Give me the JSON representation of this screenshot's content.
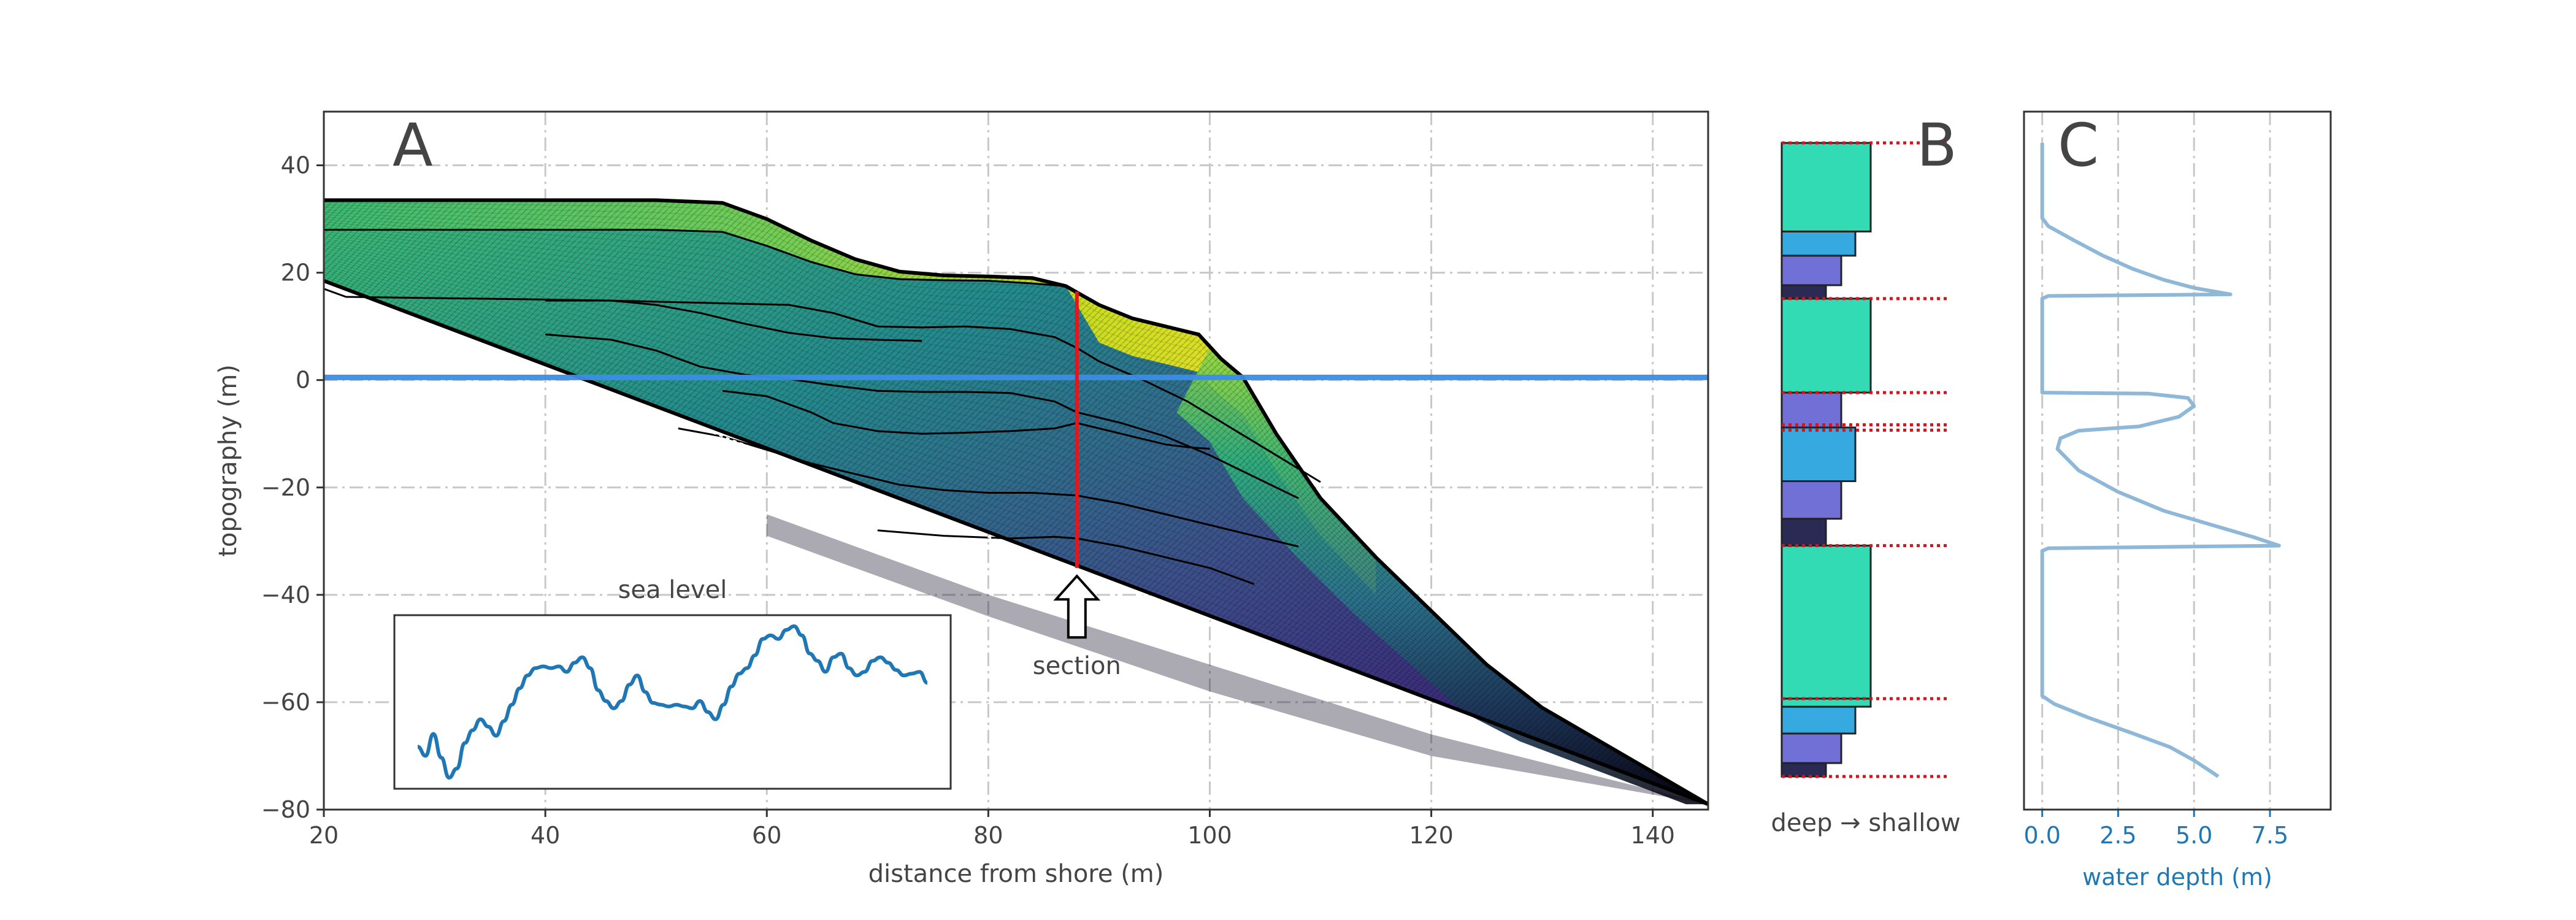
{
  "chart_data": [
    {
      "panel": "A",
      "type": "area",
      "panel_label": "A",
      "xlabel": "distance from shore (m)",
      "ylabel": "topography (m)",
      "xlim": [
        20,
        145
      ],
      "ylim": [
        -80,
        50
      ],
      "xticks": [
        20,
        40,
        60,
        80,
        100,
        120,
        140
      ],
      "yticks": [
        40,
        20,
        0,
        -20,
        -40,
        -60,
        -80
      ],
      "grid": true,
      "sea_level": 0.5,
      "basement": {
        "x": [
          20,
          145
        ],
        "y": [
          18.5,
          -79
        ]
      },
      "final_surface": {
        "x": [
          20,
          50,
          56,
          60,
          64,
          68,
          72,
          76,
          80,
          84,
          87,
          90,
          93,
          96,
          99,
          101,
          103,
          106,
          110,
          115,
          120,
          125,
          130,
          135,
          140,
          145
        ],
        "y": [
          33.5,
          33.5,
          33,
          30,
          26,
          22.5,
          20.2,
          19.5,
          19.3,
          19,
          17.5,
          14,
          11.5,
          10,
          8.5,
          4,
          0.5,
          -10,
          -22,
          -33,
          -43,
          -53,
          -61,
          -67,
          -73,
          -79
        ]
      },
      "internal_surfaces": [
        {
          "x": [
            20,
            50,
            56,
            60,
            64,
            68,
            72,
            76,
            80,
            84,
            87
          ],
          "y": [
            28,
            28,
            27.6,
            25,
            22,
            19.7,
            18.8,
            18.6,
            18.5,
            18,
            17.5
          ]
        },
        {
          "x": [
            20,
            22,
            40,
            46,
            50,
            54,
            58,
            62,
            66,
            70,
            74
          ],
          "y": [
            17,
            15.5,
            15,
            14.8,
            14,
            12.5,
            10.5,
            8.8,
            7.8,
            7.5,
            7.3
          ]
        },
        {
          "x": [
            40,
            46,
            50,
            54,
            58,
            62,
            66,
            70,
            74,
            78,
            82,
            86,
            88,
            90,
            94,
            98,
            102,
            106,
            110
          ],
          "y": [
            14.8,
            14.8,
            14.6,
            14.4,
            14.2,
            14,
            12.5,
            10,
            9.8,
            10,
            9.5,
            8,
            6,
            3.5,
            0,
            -4,
            -9,
            -14,
            -19
          ]
        },
        {
          "x": [
            40,
            46,
            50,
            54,
            58,
            62,
            66,
            70,
            74,
            78,
            82,
            86,
            88,
            92,
            96,
            100,
            104,
            108
          ],
          "y": [
            8.5,
            7.5,
            5.5,
            2.5,
            1,
            0.2,
            -1,
            -2,
            -2.2,
            -2.2,
            -2.4,
            -4,
            -6,
            -8,
            -10.5,
            -14,
            -18,
            -22
          ]
        },
        {
          "x": [
            56,
            60,
            64,
            66,
            70,
            74,
            78,
            82,
            86,
            88,
            92,
            96,
            98,
            100
          ],
          "y": [
            -2,
            -3,
            -6,
            -8,
            -9.5,
            -10,
            -9.8,
            -9.5,
            -9,
            -8,
            -10,
            -12,
            -12.5,
            -12.8
          ]
        },
        {
          "x": [
            52,
            56,
            60,
            64,
            68,
            72,
            76,
            80,
            84,
            88,
            92,
            96,
            100,
            104,
            108
          ],
          "y": [
            -9,
            -10.5,
            -13,
            -15.5,
            -17.5,
            -19.5,
            -20.5,
            -21,
            -21,
            -21.5,
            -23,
            -25,
            -27,
            -29,
            -31
          ]
        },
        {
          "x": [
            70,
            76,
            82,
            86,
            88,
            92,
            96,
            100,
            104
          ],
          "y": [
            -28,
            -29,
            -29.5,
            -29.2,
            -29.5,
            -31,
            -33,
            -35,
            -38
          ]
        }
      ],
      "section": {
        "x": 88,
        "y_top": 16.5,
        "y_bottom": -35,
        "label": "section"
      },
      "inset": {
        "title": "sea level",
        "series": [
          0,
          -0.25,
          0.35,
          -0.3,
          -0.85,
          -0.6,
          0.1,
          0.45,
          0.75,
          0.55,
          0.3,
          0.7,
          1.15,
          1.6,
          1.95,
          2.15,
          2.2,
          2.15,
          2.2,
          2.05,
          2.3,
          2.45,
          2.15,
          1.55,
          1.25,
          1.05,
          1.25,
          1.7,
          1.95,
          1.5,
          1.2,
          1.15,
          1.1,
          1.15,
          1.1,
          1.05,
          1.25,
          0.95,
          0.75,
          1.15,
          1.65,
          2.0,
          2.15,
          2.5,
          2.95,
          3.05,
          2.95,
          3.2,
          3.3,
          3.05,
          2.55,
          2.35,
          2.05,
          2.45,
          2.55,
          2.15,
          1.95,
          2.05,
          2.35,
          2.45,
          2.3,
          2.1,
          1.95,
          2.0,
          2.05,
          1.75
        ]
      }
    },
    {
      "panel": "B",
      "type": "bar",
      "panel_label": "B",
      "xlabel": "deep → shallow",
      "depth_range_m": [
        -74,
        44
      ],
      "boundaries": [
        44,
        15,
        -2.5,
        -8.5,
        -9.5,
        -31,
        -59.5,
        -74
      ],
      "units": [
        {
          "top": 44,
          "bottom": 15
        },
        {
          "top": 15,
          "bottom": -2.5
        },
        {
          "top": -2.5,
          "bottom": -9
        },
        {
          "top": -9,
          "bottom": -31
        },
        {
          "top": -31,
          "bottom": -59.5
        },
        {
          "top": -59.5,
          "bottom": -74
        }
      ],
      "classes": [
        {
          "level": 1,
          "color": "#2a2a55"
        },
        {
          "level": 2,
          "color": "#7070d6"
        },
        {
          "level": 3,
          "color": "#35a9e0"
        },
        {
          "level": 4,
          "color": "#33dbb5"
        }
      ],
      "facies_sequences": [
        [
          [
            -74,
            -71.5,
            1
          ],
          [
            -71.5,
            -66,
            2
          ],
          [
            -66,
            -61,
            3
          ],
          [
            -61,
            -59.5,
            4
          ]
        ],
        [
          [
            -59.5,
            -31,
            4
          ]
        ],
        [
          [
            -31,
            -26,
            1
          ],
          [
            -26,
            -19,
            2
          ],
          [
            -19,
            -9,
            3
          ]
        ],
        [
          [
            -9,
            -2.5,
            2
          ]
        ],
        [
          [
            -2.5,
            15,
            4
          ]
        ],
        [
          [
            15,
            17.5,
            1
          ],
          [
            17.5,
            23,
            2
          ],
          [
            23,
            27.5,
            3
          ],
          [
            27.5,
            44,
            4
          ]
        ]
      ]
    },
    {
      "panel": "C",
      "type": "line",
      "panel_label": "C",
      "xlabel": "water depth (m)",
      "xlim": [
        -0.6,
        9.5
      ],
      "xticks": [
        "0.0",
        "2.5",
        "5.0",
        "7.5"
      ],
      "grid": true,
      "color": "#8fb8d8",
      "points": [
        [
          0,
          44
        ],
        [
          0,
          30
        ],
        [
          0.2,
          28.5
        ],
        [
          1,
          26
        ],
        [
          2,
          23
        ],
        [
          3,
          20.5
        ],
        [
          4,
          18.5
        ],
        [
          5,
          17
        ],
        [
          6.2,
          15.8
        ],
        [
          0.2,
          15.5
        ],
        [
          0,
          15
        ],
        [
          0,
          0
        ],
        [
          0,
          -2.5
        ],
        [
          3.5,
          -2.7
        ],
        [
          4.8,
          -3.5
        ],
        [
          5.0,
          -5
        ],
        [
          4.5,
          -7
        ],
        [
          3.2,
          -8.8
        ],
        [
          1.2,
          -9.6
        ],
        [
          0.6,
          -11
        ],
        [
          0.5,
          -13
        ],
        [
          1.2,
          -17
        ],
        [
          2.5,
          -21
        ],
        [
          4,
          -24.5
        ],
        [
          5.5,
          -27
        ],
        [
          7,
          -29.5
        ],
        [
          7.8,
          -31
        ],
        [
          0.2,
          -31.5
        ],
        [
          0,
          -32
        ],
        [
          0,
          -59
        ],
        [
          0.4,
          -60.5
        ],
        [
          1.5,
          -63
        ],
        [
          3,
          -66
        ],
        [
          4.2,
          -68.5
        ],
        [
          5,
          -71
        ],
        [
          5.8,
          -74
        ]
      ]
    }
  ]
}
